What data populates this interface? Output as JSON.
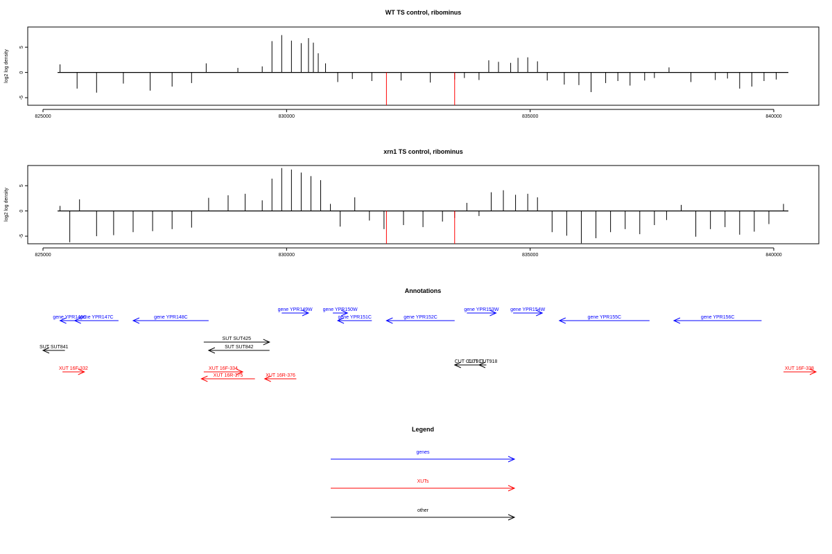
{
  "chart_data": [
    {
      "type": "bar",
      "title": "WT TS control, ribominus",
      "xlabel": "",
      "ylabel": "log2 log density",
      "xlim": [
        825000,
        840300
      ],
      "ylim": [
        -6.5,
        9
      ],
      "xticks": [
        825000,
        830000,
        835000,
        840000
      ],
      "xtick_labels": [
        "825000",
        "830000",
        "835000",
        "840000"
      ],
      "yticks": [
        -5,
        0,
        5
      ],
      "ytick_labels": [
        "-5",
        "0",
        "5"
      ],
      "baseline": 0,
      "region": [
        825300,
        840300
      ],
      "series": [
        {
          "x": [
            825350,
            825700,
            826100,
            826650,
            827200,
            827650,
            828050,
            828350,
            829000,
            829500,
            829700,
            829900,
            830100,
            830300,
            830450,
            830550,
            830650,
            830800,
            831050,
            831350,
            831750,
            832350,
            832950,
            833450,
            833650,
            833950,
            834150,
            834350,
            834600,
            834750,
            834950,
            835150,
            835350,
            835700,
            836000,
            836250,
            836550,
            836800,
            837050,
            837350,
            837550,
            837850,
            838300,
            838800,
            839050,
            839300,
            839550,
            839800,
            840050
          ],
          "values": [
            1.6,
            -3.2,
            -4.0,
            -2.2,
            -3.6,
            -2.8,
            -2.1,
            1.8,
            0.9,
            1.2,
            6.2,
            7.4,
            6.3,
            5.8,
            6.8,
            5.9,
            3.8,
            1.8,
            -1.9,
            -1.3,
            -1.7,
            -1.6,
            -2.0,
            -1.4,
            -1.1,
            -1.5,
            2.4,
            2.1,
            1.9,
            2.9,
            3.0,
            2.2,
            -1.6,
            -2.4,
            -2.5,
            -3.9,
            -2.1,
            -1.7,
            -2.6,
            -1.6,
            -1.1,
            1.0,
            -1.9,
            -1.5,
            -1.2,
            -3.2,
            -2.8,
            -1.7,
            -1.4
          ]
        }
      ],
      "markers": [
        {
          "x": 832050,
          "value": -6.5,
          "color": "#ff0000"
        },
        {
          "x": 833450,
          "value": -6.5,
          "color": "#ff0000"
        }
      ]
    },
    {
      "type": "bar",
      "title": "xrn1 TS control, ribominus",
      "xlabel": "",
      "ylabel": "log2 log density",
      "xlim": [
        825000,
        840300
      ],
      "ylim": [
        -6.5,
        9
      ],
      "xticks": [
        825000,
        830000,
        835000,
        840000
      ],
      "xtick_labels": [
        "825000",
        "830000",
        "835000",
        "840000"
      ],
      "yticks": [
        -5,
        0,
        5
      ],
      "ytick_labels": [
        "-5",
        "0",
        "5"
      ],
      "baseline": 0,
      "region": [
        825300,
        840300
      ],
      "series": [
        {
          "x": [
            825350,
            825550,
            825750,
            826100,
            826450,
            826850,
            827250,
            827650,
            828050,
            828400,
            828800,
            829150,
            829500,
            829700,
            829900,
            830100,
            830300,
            830500,
            830700,
            830900,
            831100,
            831400,
            831700,
            832000,
            832400,
            832800,
            833200,
            833450,
            833700,
            833950,
            834200,
            834450,
            834700,
            834950,
            835150,
            835450,
            835750,
            836050,
            836350,
            836650,
            836950,
            837250,
            837550,
            837800,
            838100,
            838400,
            838700,
            839000,
            839300,
            839600,
            839900,
            840200
          ],
          "values": [
            1.0,
            -6.2,
            2.3,
            -5.0,
            -4.8,
            -4.2,
            -4.0,
            -3.6,
            -3.3,
            2.6,
            3.1,
            3.4,
            2.1,
            6.4,
            8.5,
            8.2,
            7.6,
            6.9,
            6.1,
            1.4,
            -3.1,
            2.7,
            -1.9,
            -3.6,
            -2.8,
            -3.2,
            -2.1,
            -1.4,
            1.6,
            -1.0,
            3.7,
            4.1,
            3.2,
            3.4,
            2.7,
            -4.2,
            -4.9,
            -6.4,
            -5.4,
            -4.2,
            -3.6,
            -4.6,
            -2.8,
            -1.8,
            1.2,
            -5.1,
            -3.6,
            -3.2,
            -4.7,
            -4.1,
            -2.6,
            1.4
          ]
        }
      ],
      "markers": [
        {
          "x": 832050,
          "value": -6.5,
          "color": "#ff0000"
        },
        {
          "x": 833450,
          "value": -6.5,
          "color": "#ff0000"
        }
      ]
    }
  ],
  "annotations": {
    "title": "Annotations",
    "features": [
      {
        "label": "gene YPR146C",
        "start": 825350,
        "end": 825750,
        "strand": "-",
        "color": "#0000ff"
      },
      {
        "label": "gene YPR147C",
        "start": 825650,
        "end": 826550,
        "strand": "-",
        "color": "#0000ff"
      },
      {
        "label": "gene YPR148C",
        "start": 826850,
        "end": 828400,
        "strand": "-",
        "color": "#0000ff"
      },
      {
        "label": "gene YPR149W",
        "start": 829900,
        "end": 830450,
        "strand": "+",
        "color": "#0000ff"
      },
      {
        "label": "gene YPR150W",
        "start": 830950,
        "end": 831250,
        "strand": "+",
        "color": "#0000ff"
      },
      {
        "label": "gene YPR151C",
        "start": 831050,
        "end": 831750,
        "strand": "-",
        "color": "#0000ff"
      },
      {
        "label": "gene YPR152C",
        "start": 832050,
        "end": 833450,
        "strand": "-",
        "color": "#0000ff"
      },
      {
        "label": "gene YPR153W",
        "start": 833700,
        "end": 834300,
        "strand": "+",
        "color": "#0000ff"
      },
      {
        "label": "gene YPR154W",
        "start": 834650,
        "end": 835250,
        "strand": "+",
        "color": "#0000ff"
      },
      {
        "label": "gene YPR155C",
        "start": 835600,
        "end": 837450,
        "strand": "-",
        "color": "#0000ff"
      },
      {
        "label": "gene YPR156C",
        "start": 837950,
        "end": 839750,
        "strand": "-",
        "color": "#0000ff"
      },
      {
        "label": "SUT SUT841",
        "start": 825000,
        "end": 825450,
        "strand": "-",
        "color": "#000000"
      },
      {
        "label": "SUT SUT425",
        "start": 828300,
        "end": 829650,
        "strand": "+",
        "color": "#000000"
      },
      {
        "label": "SUT SUT842",
        "start": 828400,
        "end": 829650,
        "strand": "-",
        "color": "#000000"
      },
      {
        "label": "CUT CUT917",
        "start": 833450,
        "end": 834050,
        "strand": "-",
        "color": "#000000"
      },
      {
        "label": "CUT CUT918",
        "start": 833950,
        "end": 834100,
        "strand": "-",
        "color": "#000000"
      },
      {
        "label": "XUT 16F-332",
        "start": 825400,
        "end": 825850,
        "strand": "+",
        "color": "#ff0000"
      },
      {
        "label": "XUT 16F-334",
        "start": 828300,
        "end": 829100,
        "strand": "+",
        "color": "#ff0000"
      },
      {
        "label": "XUT 16R-375",
        "start": 828250,
        "end": 829350,
        "strand": "-",
        "color": "#ff0000"
      },
      {
        "label": "XUT 16R-376",
        "start": 829550,
        "end": 830200,
        "strand": "-",
        "color": "#ff0000"
      },
      {
        "label": "XUT 16F-338",
        "start": 840200,
        "end": 840900,
        "strand": "+",
        "color": "#ff0000"
      }
    ]
  },
  "legend": {
    "title": "Legend",
    "items": [
      {
        "label": "genes",
        "color": "#0000ff"
      },
      {
        "label": "XUTs",
        "color": "#ff0000"
      },
      {
        "label": "other",
        "color": "#000000"
      }
    ]
  }
}
